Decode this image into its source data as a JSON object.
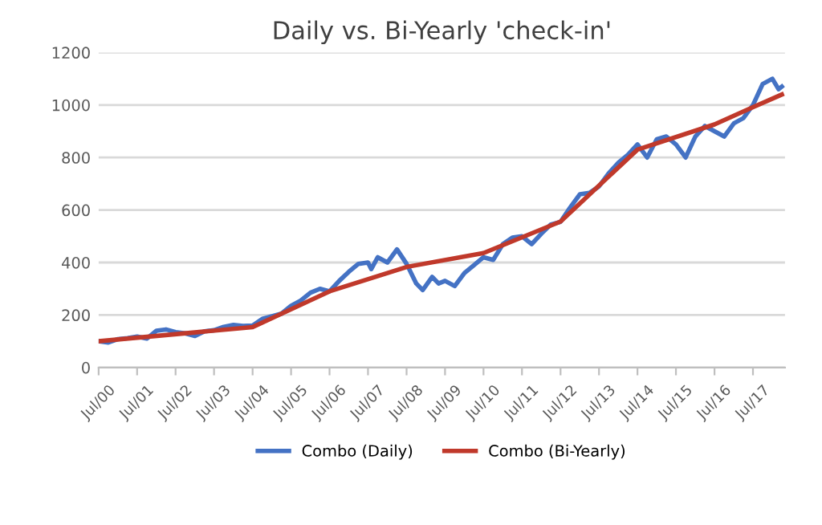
{
  "chart_data": {
    "type": "line",
    "title": "Daily vs. Bi-Yearly 'check-in'",
    "xlim": [
      "2000-07-01",
      "2018-05-01"
    ],
    "xticks": [
      {
        "value": "2000-07-01",
        "label": "Jul/00"
      },
      {
        "value": "2001-07-01",
        "label": "Jul/01"
      },
      {
        "value": "2002-07-01",
        "label": "Jul/02"
      },
      {
        "value": "2003-07-01",
        "label": "Jul/03"
      },
      {
        "value": "2004-07-01",
        "label": "Jul/04"
      },
      {
        "value": "2005-07-01",
        "label": "Jul/05"
      },
      {
        "value": "2006-07-01",
        "label": "Jul/06"
      },
      {
        "value": "2007-07-01",
        "label": "Jul/07"
      },
      {
        "value": "2008-07-01",
        "label": "Jul/08"
      },
      {
        "value": "2009-07-01",
        "label": "Jul/09"
      },
      {
        "value": "2010-07-01",
        "label": "Jul/10"
      },
      {
        "value": "2011-07-01",
        "label": "Jul/11"
      },
      {
        "value": "2012-07-01",
        "label": "Jul/12"
      },
      {
        "value": "2013-07-01",
        "label": "Jul/13"
      },
      {
        "value": "2014-07-01",
        "label": "Jul/14"
      },
      {
        "value": "2015-07-01",
        "label": "Jul/15"
      },
      {
        "value": "2016-07-01",
        "label": "Jul/16"
      },
      {
        "value": "2017-07-01",
        "label": "Jul/17"
      }
    ],
    "ylim": [
      0,
      1200
    ],
    "yticks": [
      0,
      200,
      400,
      600,
      800,
      1000,
      1200
    ],
    "grid": "y",
    "legend": "bottom",
    "marker": "none",
    "line_style": "solid",
    "series": [
      {
        "name": "Combo (Daily)",
        "color": "#4472c4",
        "x": [
          "2000-07",
          "2000-10",
          "2001-01",
          "2001-04",
          "2001-07",
          "2001-10",
          "2002-01",
          "2002-04",
          "2002-07",
          "2002-10",
          "2003-01",
          "2003-04",
          "2003-07",
          "2003-10",
          "2004-01",
          "2004-04",
          "2004-07",
          "2004-10",
          "2005-01",
          "2005-04",
          "2005-07",
          "2005-10",
          "2006-01",
          "2006-04",
          "2006-07",
          "2006-10",
          "2007-01",
          "2007-04",
          "2007-07",
          "2007-08",
          "2007-10",
          "2008-01",
          "2008-04",
          "2008-07",
          "2008-10",
          "2008-12",
          "2009-03",
          "2009-05",
          "2009-07",
          "2009-10",
          "2010-01",
          "2010-04",
          "2010-07",
          "2010-10",
          "2011-01",
          "2011-04",
          "2011-07",
          "2011-10",
          "2012-01",
          "2012-04",
          "2012-07",
          "2012-10",
          "2013-01",
          "2013-04",
          "2013-07",
          "2013-10",
          "2014-01",
          "2014-04",
          "2014-07",
          "2014-10",
          "2015-01",
          "2015-04",
          "2015-07",
          "2015-10",
          "2016-01",
          "2016-04",
          "2016-07",
          "2016-10",
          "2017-01",
          "2017-04",
          "2017-07",
          "2017-10",
          "2018-01",
          "2018-03",
          "2018-04"
        ],
        "values": [
          100,
          95,
          108,
          112,
          118,
          110,
          140,
          145,
          135,
          130,
          120,
          138,
          142,
          155,
          162,
          158,
          160,
          185,
          195,
          205,
          235,
          255,
          285,
          300,
          290,
          330,
          365,
          395,
          400,
          375,
          420,
          400,
          450,
          395,
          320,
          295,
          345,
          320,
          330,
          310,
          360,
          390,
          420,
          410,
          470,
          495,
          500,
          470,
          510,
          545,
          555,
          610,
          660,
          665,
          690,
          740,
          780,
          810,
          850,
          800,
          870,
          880,
          850,
          800,
          880,
          920,
          900,
          880,
          930,
          950,
          1000,
          1080,
          1100,
          1060,
          1070
        ]
      },
      {
        "name": "Combo (Bi-Yearly)",
        "color": "#c0392b",
        "x": [
          "2000-07",
          "2004-07",
          "2006-07",
          "2008-07",
          "2010-07",
          "2012-07",
          "2014-07",
          "2016-07",
          "2017-07",
          "2018-04"
        ],
        "values": [
          100,
          154,
          290,
          383,
          436,
          556,
          830,
          926,
          992,
          1040
        ]
      }
    ]
  }
}
